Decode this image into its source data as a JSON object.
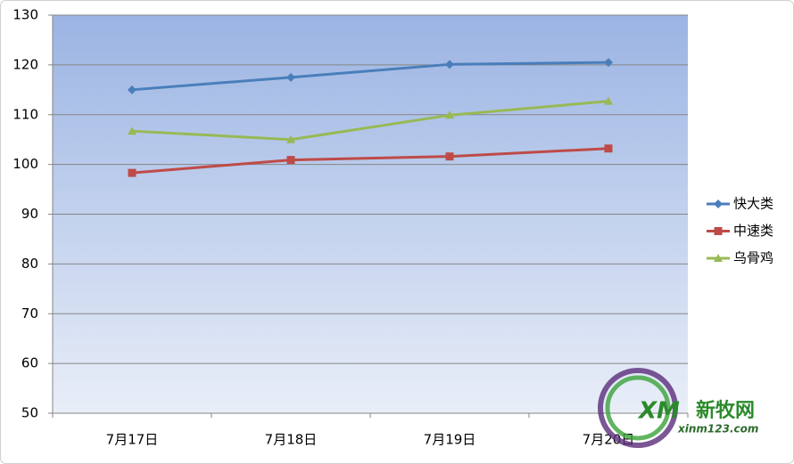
{
  "chart_data": {
    "type": "line",
    "categories": [
      "7月17日",
      "7月18日",
      "7月19日",
      "7月20日"
    ],
    "series": [
      {
        "name": "快大类",
        "color": "#4a7ebb",
        "marker": "diamond",
        "values": [
          115,
          117.5,
          120.1,
          120.5
        ]
      },
      {
        "name": "中速类",
        "color": "#be4b48",
        "marker": "square",
        "values": [
          98.3,
          100.9,
          101.6,
          103.2
        ]
      },
      {
        "name": "乌骨鸡",
        "color": "#98b954",
        "marker": "triangle",
        "values": [
          106.7,
          105,
          109.9,
          112.7
        ]
      }
    ],
    "ylim": [
      50,
      130
    ],
    "yticks": [
      50,
      60,
      70,
      80,
      90,
      100,
      110,
      120,
      130
    ],
    "grid": true,
    "legend": "right"
  },
  "watermark": {
    "logo": "XM",
    "name": "新牧网",
    "url": "xinm123.com"
  }
}
